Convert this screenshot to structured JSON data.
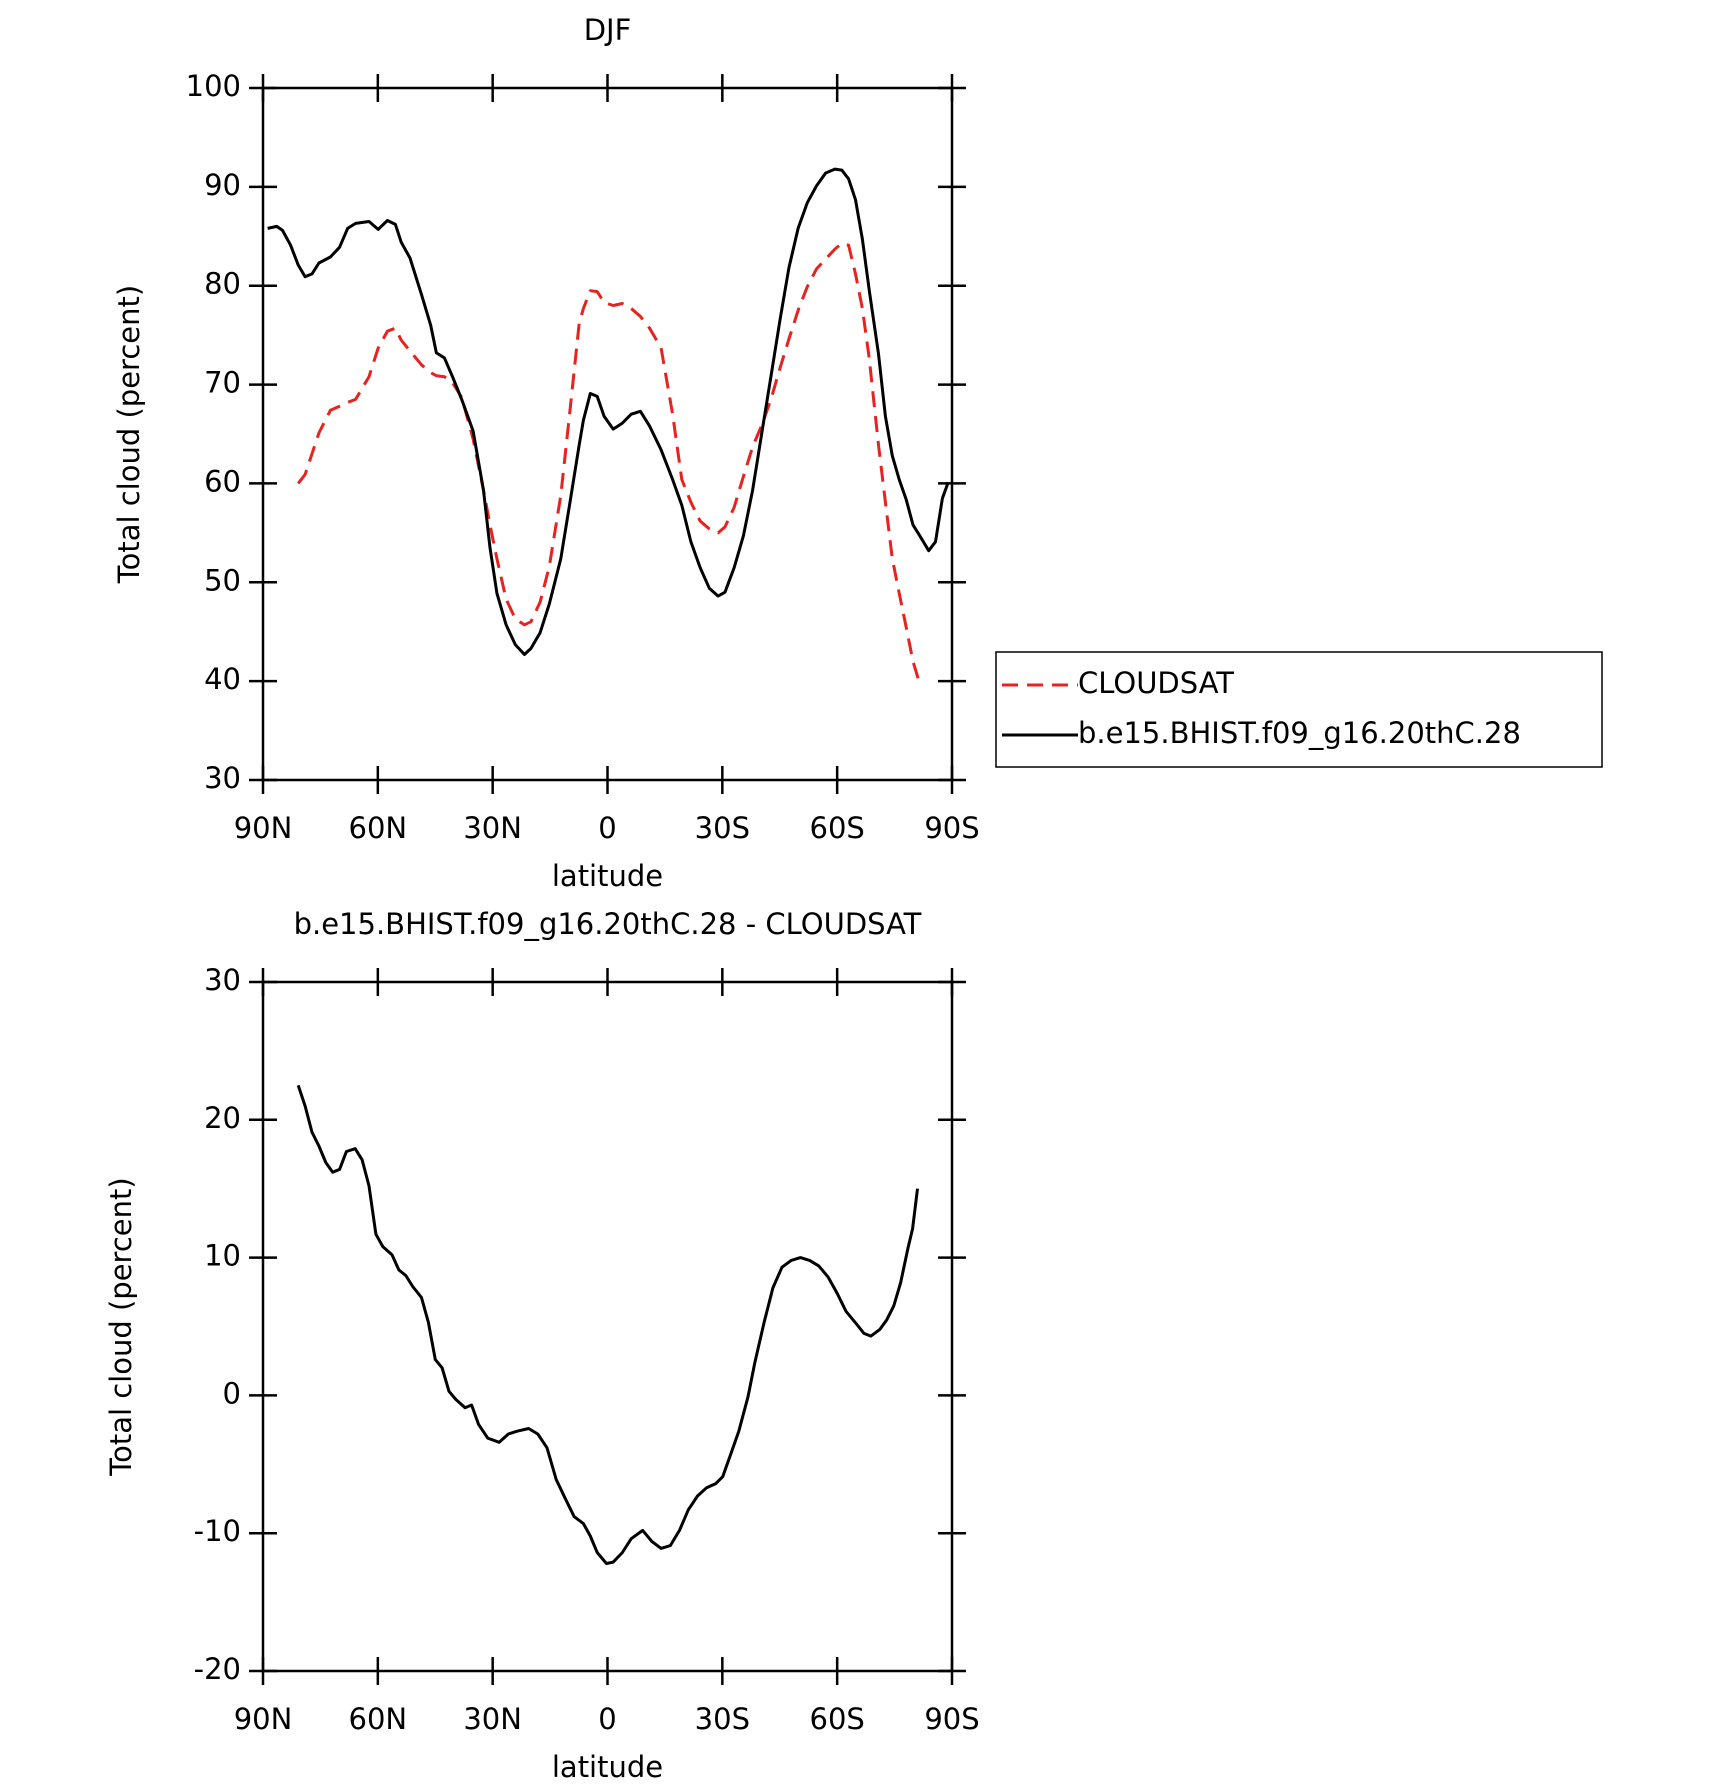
{
  "chart_data": [
    {
      "type": "line",
      "title": "DJF",
      "xlabel": "latitude",
      "ylabel": "Total cloud (percent)",
      "x": [
        88.8,
        86.4,
        84.9,
        82.8,
        80.8,
        79.0,
        77.2,
        75.4,
        72.4,
        70.0,
        67.9,
        65.8,
        62.3,
        59.9,
        57.5,
        55.4,
        53.9,
        51.6,
        48.6,
        46.2,
        44.7,
        42.6,
        40.5,
        38.1,
        35.1,
        32.4,
        30.7,
        28.9,
        26.5,
        24.1,
        21.7,
        20.0,
        17.6,
        15.2,
        12.2,
        9.8,
        7.4,
        6.3,
        4.5,
        2.7,
        0.9,
        -1.5,
        -3.9,
        -6.2,
        -8.6,
        -11.0,
        -14.0,
        -17.0,
        -19.4,
        -21.8,
        -24.2,
        -26.6,
        -28.9,
        -30.7,
        -33.1,
        -35.5,
        -37.9,
        -40.3,
        -42.7,
        -45.1,
        -47.4,
        -49.8,
        -52.2,
        -54.6,
        -57.0,
        -59.4,
        -61.2,
        -63.0,
        -64.8,
        -66.6,
        -68.4,
        -70.8,
        -72.6,
        -74.4,
        -76.2,
        -78.0,
        -79.8,
        -81.6,
        -83.9,
        -85.7,
        -87.5,
        -89.0
      ],
      "series": [
        {
          "name": "CLOUDSAT",
          "color": "#e8221e",
          "linestyle": "dashed",
          "values": [
            null,
            null,
            null,
            null,
            60.0,
            60.9,
            63.0,
            65.1,
            67.4,
            67.8,
            68.2,
            68.5,
            70.8,
            73.7,
            75.4,
            75.7,
            74.5,
            73.4,
            72.0,
            71.2,
            70.9,
            70.8,
            70.2,
            68.7,
            64.5,
            59.3,
            55.8,
            52.4,
            48.3,
            46.3,
            45.7,
            46.0,
            48.0,
            51.6,
            58.8,
            67.4,
            76.2,
            77.7,
            79.5,
            79.4,
            78.3,
            78.0,
            78.2,
            77.7,
            76.9,
            75.7,
            73.7,
            67.0,
            60.4,
            58.1,
            56.2,
            55.4,
            55.0,
            55.6,
            57.6,
            60.7,
            63.7,
            65.9,
            68.5,
            71.7,
            74.6,
            77.5,
            79.9,
            81.7,
            82.7,
            83.7,
            84.3,
            84.1,
            81.2,
            77.7,
            72.6,
            63.9,
            58.1,
            52.4,
            48.9,
            45.5,
            42.0,
            39.7,
            null,
            null,
            null,
            null
          ]
        },
        {
          "name": "b.e15.BHIST.f09_g16.20thC.28",
          "color": "#000000",
          "linestyle": "solid",
          "values": [
            85.8,
            86.0,
            85.6,
            84.1,
            82.1,
            80.9,
            81.2,
            82.3,
            82.9,
            83.9,
            85.8,
            86.3,
            86.5,
            85.7,
            86.6,
            86.2,
            84.4,
            82.8,
            79.1,
            76.0,
            73.2,
            72.7,
            70.8,
            68.5,
            65.3,
            59.3,
            53.5,
            48.9,
            45.7,
            43.7,
            42.7,
            43.3,
            44.9,
            47.8,
            52.4,
            58.1,
            63.9,
            66.4,
            69.1,
            68.8,
            66.8,
            65.5,
            66.1,
            67.0,
            67.3,
            65.8,
            63.4,
            60.4,
            57.8,
            54.1,
            51.5,
            49.4,
            48.6,
            49.0,
            51.5,
            54.7,
            59.3,
            65.1,
            70.8,
            76.6,
            81.8,
            85.8,
            88.4,
            90.1,
            91.4,
            91.8,
            91.7,
            90.8,
            88.7,
            84.7,
            79.5,
            73.1,
            66.8,
            62.8,
            60.4,
            58.4,
            55.8,
            54.7,
            53.2,
            54.1,
            58.5,
            60.1
          ]
        }
      ],
      "xlim": [
        90,
        -90
      ],
      "xticks": [
        {
          "value": 90,
          "label": "90N"
        },
        {
          "value": 60,
          "label": "60N"
        },
        {
          "value": 30,
          "label": "30N"
        },
        0,
        {
          "value": -30,
          "label": "30S"
        },
        {
          "value": -60,
          "label": "60S"
        },
        {
          "value": -90,
          "label": "90S"
        }
      ],
      "ylim": [
        30,
        100
      ],
      "yticks": [
        30,
        40,
        50,
        60,
        70,
        80,
        90,
        100
      ],
      "legend": "right"
    },
    {
      "type": "line",
      "title": "b.e15.BHIST.f09_g16.20thC.28 - CLOUDSAT",
      "xlabel": "latitude",
      "ylabel": "Total cloud (percent)",
      "x": [
        80.8,
        79.0,
        77.2,
        75.4,
        73.6,
        71.8,
        70.0,
        68.2,
        65.9,
        64.1,
        62.3,
        60.5,
        58.7,
        56.3,
        54.5,
        52.7,
        50.9,
        48.6,
        46.8,
        45.0,
        43.2,
        41.4,
        39.6,
        37.2,
        35.5,
        33.7,
        31.3,
        28.3,
        25.9,
        23.6,
        20.6,
        18.2,
        15.8,
        13.4,
        11.0,
        8.7,
        6.3,
        4.5,
        2.7,
        0.3,
        -1.5,
        -3.9,
        -6.2,
        -9.2,
        -11.6,
        -14.0,
        -16.4,
        -18.8,
        -21.1,
        -23.5,
        -25.9,
        -28.3,
        -30.1,
        -31.9,
        -34.3,
        -36.7,
        -38.5,
        -40.9,
        -43.2,
        -45.6,
        -48.0,
        -50.4,
        -52.8,
        -55.2,
        -57.6,
        -60.0,
        -62.3,
        -64.7,
        -67.0,
        -68.8,
        -71.2,
        -73.0,
        -74.8,
        -76.6,
        -78.5,
        -79.7,
        -81.0
      ],
      "values": [
        22.5,
        21.0,
        19.1,
        18.1,
        16.9,
        16.2,
        16.4,
        17.7,
        17.9,
        17.1,
        15.2,
        11.7,
        10.8,
        10.2,
        9.1,
        8.7,
        7.9,
        7.1,
        5.3,
        2.6,
        2.0,
        0.3,
        -0.3,
        -0.9,
        -0.7,
        -2.1,
        -3.1,
        -3.4,
        -2.8,
        -2.6,
        -2.4,
        -2.8,
        -3.8,
        -6.1,
        -7.5,
        -8.8,
        -9.3,
        -10.2,
        -11.4,
        -12.2,
        -12.1,
        -11.4,
        -10.4,
        -9.8,
        -10.6,
        -11.1,
        -10.9,
        -9.8,
        -8.3,
        -7.3,
        -6.7,
        -6.4,
        -5.9,
        -4.5,
        -2.6,
        -0.1,
        2.4,
        5.3,
        7.8,
        9.3,
        9.8,
        10.0,
        9.8,
        9.4,
        8.6,
        7.4,
        6.1,
        5.3,
        4.5,
        4.3,
        4.8,
        5.5,
        6.5,
        8.2,
        10.7,
        12.1,
        15.0
      ],
      "color": "#000000",
      "xlim": [
        90,
        -90
      ],
      "xticks": [
        {
          "value": 90,
          "label": "90N"
        },
        {
          "value": 60,
          "label": "60N"
        },
        {
          "value": 30,
          "label": "30N"
        },
        0,
        {
          "value": -30,
          "label": "30S"
        },
        {
          "value": -60,
          "label": "60S"
        },
        {
          "value": -90,
          "label": "90S"
        }
      ],
      "ylim": [
        -20,
        30
      ],
      "yticks": [
        -20,
        -10,
        0,
        10,
        20,
        30
      ]
    }
  ]
}
